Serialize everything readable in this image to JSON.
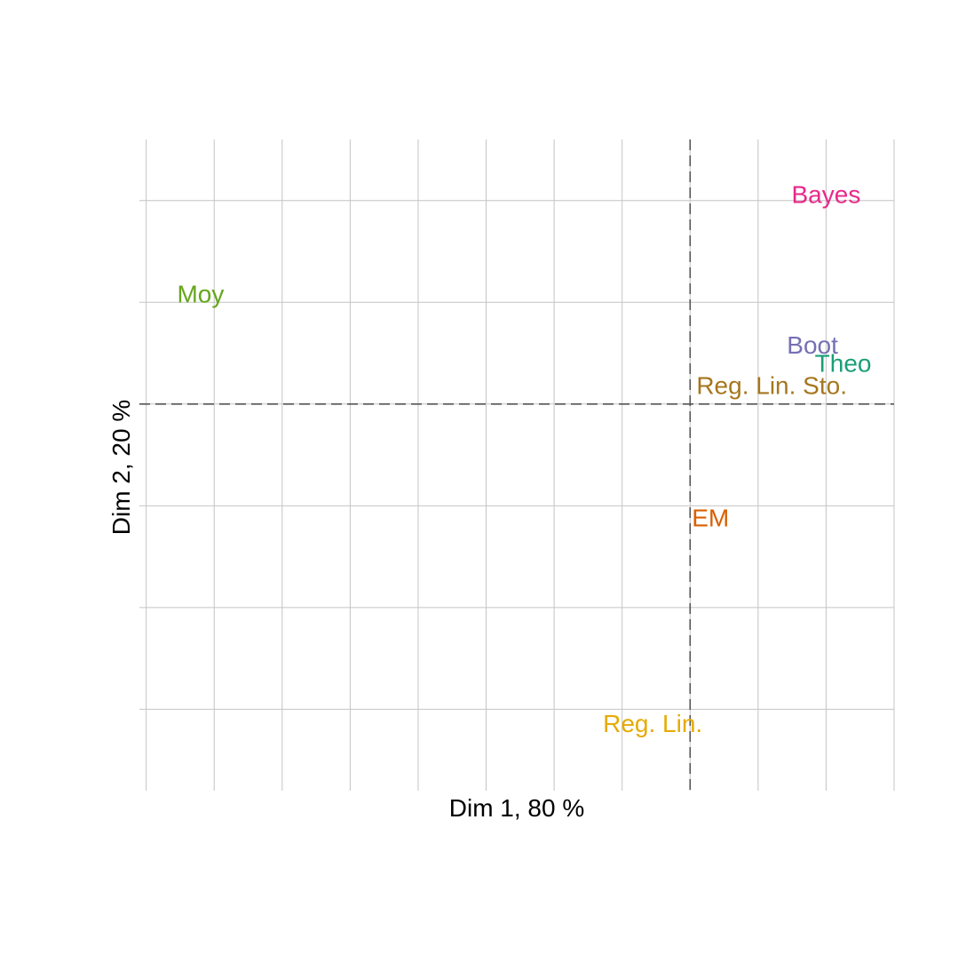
{
  "chart_data": {
    "type": "scatter",
    "title": "",
    "xlabel": "Dim 1, 80 %",
    "ylabel": "Dim 2, 20 %",
    "xlim": [
      -0.81,
      0.3
    ],
    "ylim": [
      -0.19,
      0.13
    ],
    "grid": true,
    "reference_lines": {
      "x": 0,
      "y": 0,
      "style": "dashed"
    },
    "points": [
      {
        "label": "Bayes",
        "x": 0.2,
        "y": 0.103,
        "color": "#E7298A"
      },
      {
        "label": "Moy",
        "x": -0.72,
        "y": 0.054,
        "color": "#66A61E"
      },
      {
        "label": "Boot",
        "x": 0.18,
        "y": 0.029,
        "color": "#7570B3"
      },
      {
        "label": "Theo",
        "x": 0.225,
        "y": 0.02,
        "color": "#1B9E77"
      },
      {
        "label": "Reg. Lin. Sto.",
        "x": 0.12,
        "y": 0.009,
        "color": "#A6761D"
      },
      {
        "label": "EM",
        "x": 0.03,
        "y": -0.056,
        "color": "#D95F02"
      },
      {
        "label": "Reg. Lin.",
        "x": -0.055,
        "y": -0.157,
        "color": "#E6AB02"
      }
    ]
  }
}
